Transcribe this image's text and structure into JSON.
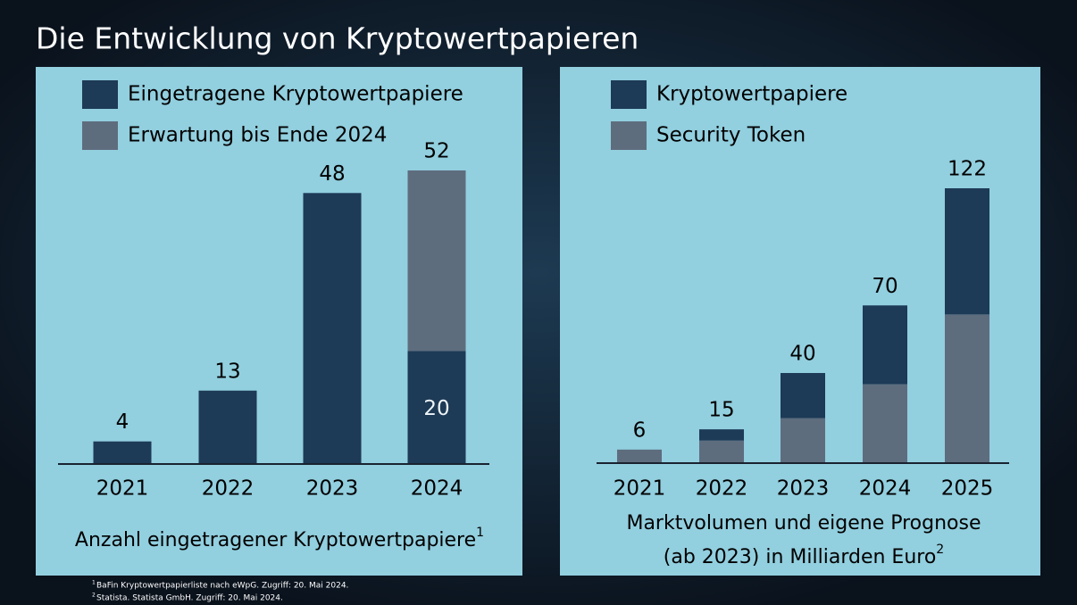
{
  "title": "Die Entwicklung von Kryptowertpapieren",
  "footnotes": [
    {
      "mark": "1",
      "text": "BaFin Kryptowertpapierliste nach eWpG. Zugriff: 20. Mai 2024."
    },
    {
      "mark": "2",
      "text": "Statista. Statista GmbH. Zugriff: 20. Mai 2024."
    }
  ],
  "chart_data": [
    {
      "type": "bar",
      "stacked": true,
      "stack_from": "first",
      "categories": [
        "2021",
        "2022",
        "2023",
        "2024"
      ],
      "series": [
        {
          "name": "Eingetragene Kryptowertpapiere",
          "color": "#1d3a56",
          "values": [
            4,
            13,
            48,
            20
          ]
        },
        {
          "name": "Erwartung bis Ende 2024",
          "color": "#5e6d7e",
          "values": [
            null,
            null,
            null,
            32
          ]
        }
      ],
      "totals": [
        null,
        null,
        null,
        52
      ],
      "segment_labels": true,
      "ylim": [
        0,
        52
      ],
      "xlabel_lines": [
        "Anzahl eingetragener Kryptowertpapiere"
      ],
      "xlabel_note": "1"
    },
    {
      "type": "bar",
      "stacked": true,
      "stack_from": "last",
      "categories": [
        "2021",
        "2022",
        "2023",
        "2024",
        "2025"
      ],
      "series": [
        {
          "name": "Kryptowertpapiere",
          "color": "#1d3a56",
          "values": [
            null,
            5,
            20,
            35,
            56
          ]
        },
        {
          "name": "Security Token",
          "color": "#5e6d7e",
          "values": [
            6,
            10,
            20,
            35,
            66
          ]
        }
      ],
      "totals": [
        6,
        15,
        40,
        70,
        122
      ],
      "segment_labels": false,
      "ylim": [
        0,
        122
      ],
      "xlabel_lines": [
        "Marktvolumen und eigene Prognose",
        "(ab 2023) in Milliarden Euro"
      ],
      "xlabel_note": "2"
    }
  ]
}
